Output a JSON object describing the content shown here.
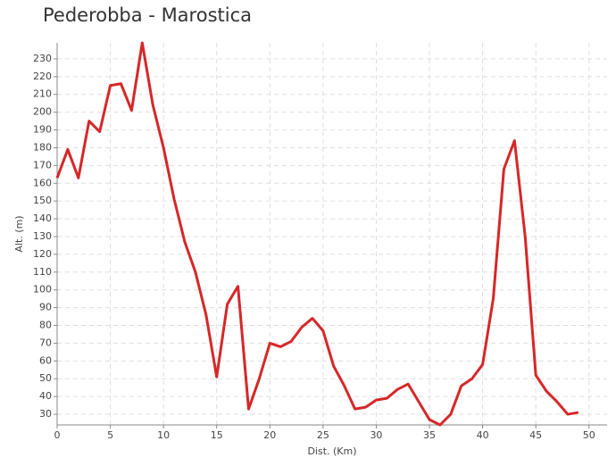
{
  "chart_data": {
    "type": "line",
    "title": "Pederobba - Marostica",
    "x_label": "Dist. (Km)",
    "y_label": "Alt. (m)",
    "x": [
      0,
      1,
      2,
      3,
      4,
      5,
      6,
      7,
      8,
      9,
      10,
      11,
      12,
      13,
      14,
      15,
      16,
      17,
      18,
      19,
      20,
      21,
      22,
      23,
      24,
      25,
      26,
      27,
      28,
      29,
      30,
      31,
      32,
      33,
      34,
      35,
      36,
      37,
      38,
      39,
      40,
      41,
      42,
      43,
      44,
      45,
      46,
      47,
      48,
      49
    ],
    "series": [
      {
        "color": "#d62728",
        "values": [
          163,
          179,
          163,
          195,
          189,
          215,
          216,
          201,
          239,
          204,
          180,
          151,
          127,
          110,
          86,
          51,
          92,
          102,
          33,
          50,
          70,
          68,
          71,
          79,
          84,
          77,
          57,
          46,
          33,
          34,
          38,
          39,
          44,
          47,
          37,
          27,
          24,
          30,
          46,
          50,
          58,
          95,
          168,
          184,
          130,
          52,
          43,
          37,
          30,
          31
        ]
      }
    ],
    "xlim": [
      0,
      51.7
    ],
    "xticks": [
      0,
      5,
      10,
      15,
      20,
      25,
      30,
      35,
      40,
      45,
      50
    ],
    "ylim": [
      24,
      239
    ],
    "yticks": [
      30,
      40,
      50,
      60,
      70,
      80,
      90,
      100,
      110,
      120,
      130,
      140,
      150,
      160,
      170,
      180,
      190,
      200,
      210,
      220,
      230
    ],
    "grid": true
  }
}
